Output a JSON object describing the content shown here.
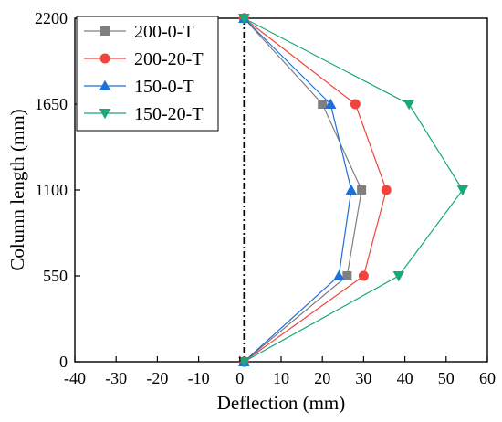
{
  "chart_data": {
    "type": "line",
    "xlabel": "Deflection (mm)",
    "ylabel": "Column length (mm)",
    "xlim": [
      -40,
      60
    ],
    "ylim": [
      0,
      2200
    ],
    "x_ticks": [
      -40,
      -30,
      -20,
      -10,
      0,
      10,
      20,
      30,
      40,
      50,
      60
    ],
    "y_ticks": [
      0,
      550,
      1100,
      1650,
      2200
    ],
    "grid": false,
    "legend_position": "top-left",
    "reference_line": {
      "x": 1,
      "style": "dash-dot",
      "color": "#000000"
    },
    "series": [
      {
        "name": "200-0-T",
        "marker": "square",
        "color": "#7f7f7f",
        "points": [
          [
            1,
            0
          ],
          [
            26,
            550
          ],
          [
            29.5,
            1100
          ],
          [
            20,
            1650
          ],
          [
            1,
            2200
          ]
        ]
      },
      {
        "name": "200-20-T",
        "marker": "circle",
        "color": "#f0443c",
        "points": [
          [
            1,
            0
          ],
          [
            30,
            550
          ],
          [
            35.5,
            1100
          ],
          [
            28,
            1650
          ],
          [
            1,
            2200
          ]
        ]
      },
      {
        "name": "150-0-T",
        "marker": "triangle-up",
        "color": "#1f6fd8",
        "points": [
          [
            1,
            0
          ],
          [
            24,
            550
          ],
          [
            27,
            1100
          ],
          [
            22,
            1650
          ],
          [
            1,
            2200
          ]
        ]
      },
      {
        "name": "150-20-T",
        "marker": "triangle-down",
        "color": "#19a877",
        "points": [
          [
            1,
            0
          ],
          [
            38.5,
            550
          ],
          [
            54,
            1100
          ],
          [
            41,
            1650
          ],
          [
            1,
            2200
          ]
        ]
      }
    ]
  }
}
